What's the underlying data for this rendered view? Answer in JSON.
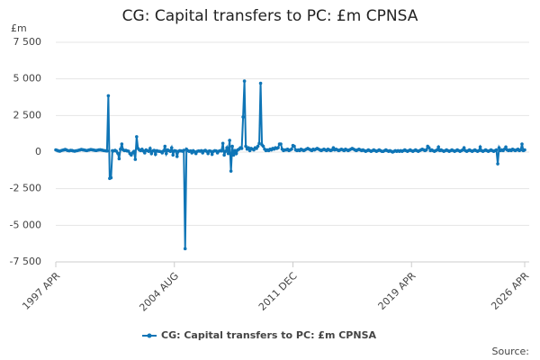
{
  "chart_data": {
    "type": "line",
    "title": "CG: Capital transfers to PC: £m CPNSA",
    "ylabel": "£m",
    "source": "Source:",
    "ylim": [
      -7500,
      7500
    ],
    "yticks": [
      {
        "value": 7500,
        "label": "7 500"
      },
      {
        "value": 5000,
        "label": "5 000"
      },
      {
        "value": 2500,
        "label": "2 500"
      },
      0,
      {
        "value": -2500,
        "label": "-2 500"
      },
      {
        "value": -5000,
        "label": "-5 000"
      },
      {
        "value": -7500,
        "label": "-7 500"
      }
    ],
    "grid": true,
    "legend": "bottom",
    "categories": [
      "1997 APR",
      null,
      null,
      null,
      null,
      null,
      null,
      null,
      null,
      null,
      null,
      null,
      null,
      null,
      null,
      null,
      null,
      null,
      null,
      null,
      null,
      null,
      null,
      null,
      null,
      null,
      null,
      null,
      null,
      null,
      null,
      null,
      null,
      null,
      null,
      null,
      null,
      null,
      null,
      null,
      null,
      null,
      null,
      null,
      null,
      null,
      null,
      null,
      null,
      null,
      null,
      null,
      null,
      null,
      null,
      null,
      null,
      null,
      null,
      null,
      null,
      null,
      null,
      null,
      null,
      null,
      null,
      null,
      null,
      null,
      null,
      null,
      null,
      null,
      null,
      null,
      null,
      null,
      null,
      null,
      null,
      null,
      null,
      null,
      null,
      null,
      null,
      null,
      "2004 AUG",
      null,
      null,
      null,
      null,
      null,
      null,
      null,
      null,
      null,
      null,
      null,
      null,
      null,
      null,
      null,
      null,
      null,
      null,
      null,
      null,
      null,
      null,
      null,
      null,
      null,
      null,
      null,
      null,
      null,
      null,
      null,
      null,
      null,
      null,
      null,
      null,
      null,
      null,
      null,
      null,
      null,
      null,
      null,
      null,
      null,
      null,
      null,
      null,
      null,
      null,
      null,
      null,
      null,
      null,
      null,
      null,
      null,
      null,
      null,
      null,
      null,
      null,
      null,
      null,
      null,
      null,
      null,
      null,
      null,
      null,
      null,
      null,
      null,
      null,
      null,
      null,
      null,
      null,
      null,
      null,
      null,
      null,
      null,
      null,
      null,
      null,
      null,
      "2011 DEC",
      null,
      null,
      null,
      null,
      null,
      null,
      null,
      null,
      null,
      null,
      null,
      null,
      null,
      null,
      null,
      null,
      null,
      null,
      null,
      null,
      null,
      null,
      null,
      null,
      null,
      null,
      null,
      null,
      null,
      null,
      null,
      null,
      null,
      null,
      null,
      null,
      null,
      null,
      null,
      null,
      null,
      null,
      null,
      null,
      null,
      null,
      null,
      null,
      null,
      null,
      null,
      null,
      null,
      null,
      null,
      null,
      null,
      null,
      null,
      null,
      null,
      null,
      null,
      null,
      null,
      null,
      null,
      null,
      null,
      null,
      null,
      null,
      null,
      null,
      null,
      null,
      null,
      null,
      null,
      null,
      null,
      null,
      null,
      null,
      null,
      null,
      null,
      "2019 APR",
      null,
      null,
      null,
      null,
      null,
      null,
      null,
      null,
      null,
      null,
      null,
      null,
      null,
      null,
      null,
      null,
      null,
      null,
      null,
      null,
      null,
      null,
      null,
      null,
      null,
      null,
      null,
      null,
      null,
      null,
      null,
      null,
      null,
      null,
      null,
      null,
      null,
      null,
      null,
      null,
      null,
      null,
      null,
      null,
      null,
      null,
      null,
      null,
      null,
      null,
      null,
      null,
      null,
      null,
      null,
      null,
      null,
      null,
      null,
      null,
      null,
      null,
      null,
      null,
      null,
      null,
      null,
      null,
      null,
      null,
      null,
      null,
      null,
      null,
      null,
      null,
      null,
      null,
      null,
      null,
      null,
      null,
      null,
      "2026 APR"
    ],
    "series": [
      {
        "name": "CG: Capital transfers to PC: £m CPNSA",
        "color": "#0f75b6",
        "values": [
          150,
          120,
          80,
          60,
          100,
          130,
          150,
          180,
          140,
          100,
          90,
          120,
          110,
          80,
          60,
          90,
          100,
          130,
          150,
          180,
          160,
          140,
          120,
          100,
          130,
          150,
          170,
          160,
          140,
          120,
          110,
          130,
          150,
          160,
          140,
          120,
          100,
          90,
          80,
          3850,
          -1800,
          -1750,
          100,
          80,
          120,
          60,
          -80,
          -450,
          200,
          550,
          150,
          100,
          120,
          80,
          60,
          -100,
          -200,
          -50,
          50,
          -500,
          1050,
          250,
          150,
          100,
          200,
          80,
          -50,
          150,
          100,
          50,
          250,
          -100,
          80,
          120,
          -150,
          100,
          60,
          50,
          30,
          -50,
          80,
          400,
          -100,
          150,
          100,
          50,
          300,
          -200,
          100,
          80,
          -300,
          50,
          100,
          80,
          60,
          120,
          -6600,
          200,
          100,
          50,
          80,
          -50,
          100,
          20,
          -100,
          50,
          80,
          60,
          100,
          -50,
          80,
          120,
          50,
          -100,
          80,
          60,
          -150,
          50,
          100,
          80,
          -50,
          60,
          100,
          80,
          600,
          -200,
          50,
          300,
          -100,
          800,
          -1300,
          400,
          -200,
          100,
          -100,
          150,
          200,
          300,
          250,
          2400,
          4850,
          400,
          200,
          300,
          100,
          250,
          200,
          150,
          300,
          250,
          400,
          600,
          4700,
          500,
          400,
          200,
          100,
          150,
          100,
          200,
          150,
          250,
          200,
          300,
          250,
          300,
          550,
          550,
          200,
          100,
          150,
          150,
          200,
          100,
          150,
          200,
          450,
          400,
          150,
          100,
          150,
          100,
          200,
          150,
          100,
          150,
          200,
          250,
          200,
          150,
          100,
          200,
          150,
          200,
          250,
          200,
          150,
          100,
          150,
          200,
          150,
          100,
          200,
          150,
          100,
          150,
          300,
          150,
          200,
          150,
          100,
          150,
          200,
          150,
          100,
          200,
          150,
          100,
          150,
          200,
          250,
          200,
          150,
          100,
          150,
          200,
          150,
          100,
          150,
          100,
          50,
          100,
          150,
          100,
          50,
          100,
          150,
          100,
          50,
          100,
          150,
          100,
          50,
          50,
          100,
          150,
          100,
          50,
          100,
          50,
          0,
          50,
          100,
          50,
          100,
          50,
          100,
          50,
          100,
          150,
          100,
          50,
          100,
          150,
          100,
          50,
          100,
          150,
          100,
          50,
          100,
          150,
          200,
          150,
          100,
          150,
          400,
          300,
          100,
          150,
          100,
          50,
          100,
          150,
          350,
          100,
          150,
          100,
          50,
          100,
          150,
          100,
          50,
          100,
          150,
          100,
          50,
          100,
          150,
          100,
          50,
          100,
          150,
          300,
          100,
          50,
          100,
          150,
          100,
          50,
          100,
          150,
          100,
          50,
          100,
          350,
          100,
          50,
          100,
          150,
          100,
          50,
          100,
          150,
          100,
          50,
          100,
          150,
          -800,
          300,
          100,
          150,
          100,
          200,
          350,
          150,
          100,
          150,
          100,
          200,
          150,
          100,
          150,
          200,
          100,
          150,
          550,
          100,
          150
        ]
      }
    ]
  }
}
